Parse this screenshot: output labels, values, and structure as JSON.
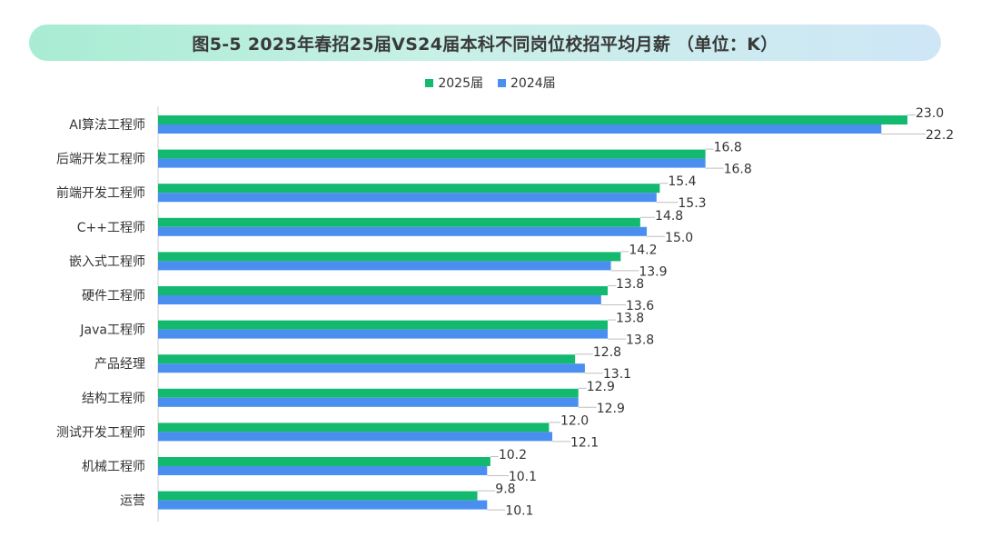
{
  "chart_data": {
    "type": "bar",
    "orientation": "horizontal",
    "title": "图5-5 2025年春招25届VS24届本科不同岗位校招平均月薪 （单位：K）",
    "categories": [
      "AI算法工程师",
      "后端开发工程师",
      "前端开发工程师",
      "C++工程师",
      "嵌入式工程师",
      "硬件工程师",
      "Java工程师",
      "产品经理",
      "结构工程师",
      "测试开发工程师",
      "机械工程师",
      "运营"
    ],
    "series": [
      {
        "name": "2025届",
        "color": "#13b96f",
        "values": [
          23.0,
          16.8,
          15.4,
          14.8,
          14.2,
          13.8,
          13.8,
          12.8,
          12.9,
          12.0,
          10.2,
          9.8
        ]
      },
      {
        "name": "2024届",
        "color": "#4a8ff0",
        "values": [
          22.2,
          16.8,
          15.3,
          15.0,
          13.9,
          13.6,
          13.8,
          13.1,
          12.9,
          12.1,
          10.1,
          10.1
        ]
      }
    ],
    "xlim": [
      0,
      23.0
    ],
    "grid": false,
    "legend_position": "top-center"
  }
}
